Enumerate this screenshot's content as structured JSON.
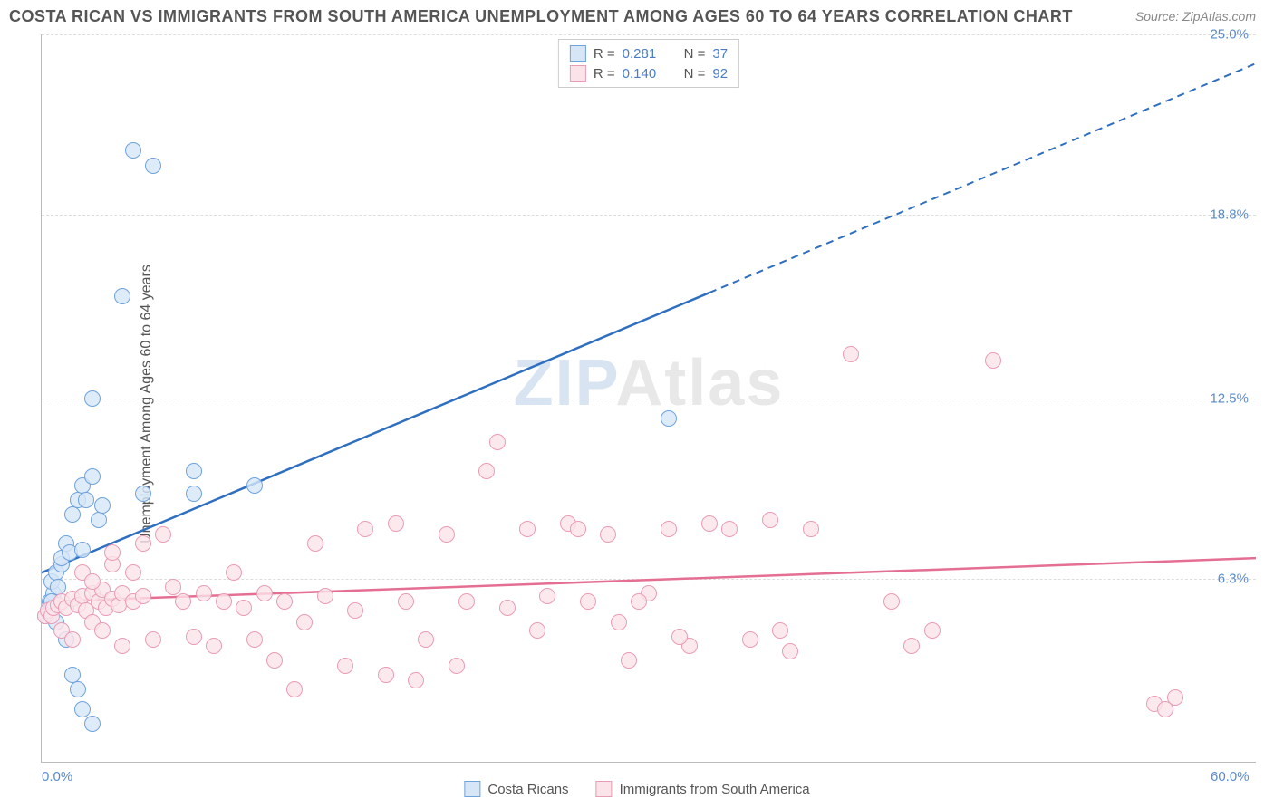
{
  "title": "COSTA RICAN VS IMMIGRANTS FROM SOUTH AMERICA UNEMPLOYMENT AMONG AGES 60 TO 64 YEARS CORRELATION CHART",
  "source": "Source: ZipAtlas.com",
  "ylabel": "Unemployment Among Ages 60 to 64 years",
  "watermark_a": "ZIP",
  "watermark_b": "Atlas",
  "chart": {
    "xlim": [
      0,
      60
    ],
    "ylim": [
      0,
      25
    ],
    "xticks": [
      {
        "v": 0,
        "label": "0.0%"
      },
      {
        "v": 60,
        "label": "60.0%"
      }
    ],
    "yticks": [
      {
        "v": 6.3,
        "label": "6.3%"
      },
      {
        "v": 12.5,
        "label": "12.5%"
      },
      {
        "v": 18.8,
        "label": "18.8%"
      },
      {
        "v": 25.0,
        "label": "25.0%"
      }
    ],
    "grid_color": "#dddddd",
    "background_color": "#ffffff",
    "marker_radius": 9,
    "marker_stroke_width": 1.5,
    "series": [
      {
        "name": "Costa Ricans",
        "fill": "#d6e6f7",
        "stroke": "#6fa3dd",
        "line_color": "#2f6fc0",
        "r": "0.281",
        "n": "37",
        "trend": {
          "x0": 0,
          "y0": 6.5,
          "x1": 60,
          "y1": 24.0,
          "solid_until_x": 33
        },
        "points": [
          [
            0.2,
            5.0
          ],
          [
            0.3,
            5.2
          ],
          [
            0.4,
            5.5
          ],
          [
            0.5,
            5.3
          ],
          [
            0.6,
            5.8
          ],
          [
            0.7,
            4.8
          ],
          [
            0.8,
            5.4
          ],
          [
            0.5,
            6.2
          ],
          [
            0.7,
            6.5
          ],
          [
            1.0,
            6.8
          ],
          [
            1.2,
            7.5
          ],
          [
            1.0,
            7.0
          ],
          [
            1.4,
            7.2
          ],
          [
            1.5,
            8.5
          ],
          [
            1.8,
            9.0
          ],
          [
            2.0,
            9.5
          ],
          [
            2.2,
            9.0
          ],
          [
            2.5,
            9.8
          ],
          [
            2.0,
            7.3
          ],
          [
            2.8,
            8.3
          ],
          [
            1.2,
            4.2
          ],
          [
            1.5,
            3.0
          ],
          [
            1.8,
            2.5
          ],
          [
            2.5,
            1.3
          ],
          [
            2.0,
            1.8
          ],
          [
            2.5,
            12.5
          ],
          [
            4.0,
            16.0
          ],
          [
            4.5,
            21.0
          ],
          [
            5.5,
            20.5
          ],
          [
            3.0,
            8.8
          ],
          [
            5.0,
            9.2
          ],
          [
            7.5,
            10.0
          ],
          [
            7.5,
            9.2
          ],
          [
            10.5,
            9.5
          ],
          [
            31.0,
            11.8
          ],
          [
            0.5,
            5.5
          ],
          [
            0.8,
            6.0
          ]
        ]
      },
      {
        "name": "Immigrants from South America",
        "fill": "#fbe3ea",
        "stroke": "#e99cb5",
        "line_color": "#e56f93",
        "r": "0.140",
        "n": "92",
        "trend": {
          "x0": 0,
          "y0": 5.5,
          "x1": 60,
          "y1": 7.0,
          "solid_until_x": 60
        },
        "points": [
          [
            0.2,
            5.0
          ],
          [
            0.3,
            5.2
          ],
          [
            0.5,
            5.0
          ],
          [
            0.6,
            5.3
          ],
          [
            0.8,
            5.4
          ],
          [
            1.0,
            5.5
          ],
          [
            1.2,
            5.3
          ],
          [
            1.5,
            5.6
          ],
          [
            1.8,
            5.4
          ],
          [
            2.0,
            5.7
          ],
          [
            2.2,
            5.2
          ],
          [
            2.5,
            5.8
          ],
          [
            2.8,
            5.5
          ],
          [
            3.0,
            5.9
          ],
          [
            3.2,
            5.3
          ],
          [
            3.5,
            5.6
          ],
          [
            3.8,
            5.4
          ],
          [
            4.0,
            5.8
          ],
          [
            4.5,
            5.5
          ],
          [
            5.0,
            5.7
          ],
          [
            1.0,
            4.5
          ],
          [
            1.5,
            4.2
          ],
          [
            2.5,
            4.8
          ],
          [
            3.0,
            4.5
          ],
          [
            4.0,
            4.0
          ],
          [
            5.5,
            4.2
          ],
          [
            2.0,
            6.5
          ],
          [
            2.5,
            6.2
          ],
          [
            3.5,
            6.8
          ],
          [
            4.5,
            6.5
          ],
          [
            5.0,
            7.5
          ],
          [
            6.0,
            7.8
          ],
          [
            7.0,
            5.5
          ],
          [
            7.5,
            4.3
          ],
          [
            8.0,
            5.8
          ],
          [
            8.5,
            4.0
          ],
          [
            9.0,
            5.5
          ],
          [
            9.5,
            6.5
          ],
          [
            10.0,
            5.3
          ],
          [
            10.5,
            4.2
          ],
          [
            11.0,
            5.8
          ],
          [
            11.5,
            3.5
          ],
          [
            12.0,
            5.5
          ],
          [
            13.0,
            4.8
          ],
          [
            14.0,
            5.7
          ],
          [
            15.0,
            3.3
          ],
          [
            15.5,
            5.2
          ],
          [
            16.0,
            8.0
          ],
          [
            17.0,
            3.0
          ],
          [
            17.5,
            8.2
          ],
          [
            18.0,
            5.5
          ],
          [
            18.5,
            2.8
          ],
          [
            19.0,
            4.2
          ],
          [
            20.0,
            7.8
          ],
          [
            20.5,
            3.3
          ],
          [
            21.0,
            5.5
          ],
          [
            22.0,
            10.0
          ],
          [
            22.5,
            11.0
          ],
          [
            23.0,
            5.3
          ],
          [
            24.0,
            8.0
          ],
          [
            24.5,
            4.5
          ],
          [
            25.0,
            5.7
          ],
          [
            26.0,
            8.2
          ],
          [
            26.5,
            8.0
          ],
          [
            27.0,
            5.5
          ],
          [
            28.0,
            7.8
          ],
          [
            28.5,
            4.8
          ],
          [
            29.0,
            3.5
          ],
          [
            30.0,
            5.8
          ],
          [
            31.0,
            8.0
          ],
          [
            32.0,
            4.0
          ],
          [
            33.0,
            8.2
          ],
          [
            34.0,
            8.0
          ],
          [
            35.0,
            4.2
          ],
          [
            36.0,
            8.3
          ],
          [
            36.5,
            4.5
          ],
          [
            37.0,
            3.8
          ],
          [
            38.0,
            8.0
          ],
          [
            40.0,
            14.0
          ],
          [
            42.0,
            5.5
          ],
          [
            43.0,
            4.0
          ],
          [
            44.0,
            4.5
          ],
          [
            47.0,
            13.8
          ],
          [
            55.0,
            2.0
          ],
          [
            55.5,
            1.8
          ],
          [
            56.0,
            2.2
          ],
          [
            3.5,
            7.2
          ],
          [
            6.5,
            6.0
          ],
          [
            12.5,
            2.5
          ],
          [
            13.5,
            7.5
          ],
          [
            29.5,
            5.5
          ],
          [
            31.5,
            4.3
          ]
        ]
      }
    ]
  },
  "legend": {
    "a": "Costa Ricans",
    "b": "Immigrants from South America"
  },
  "stats_labels": {
    "r": "R =",
    "n": "N ="
  }
}
